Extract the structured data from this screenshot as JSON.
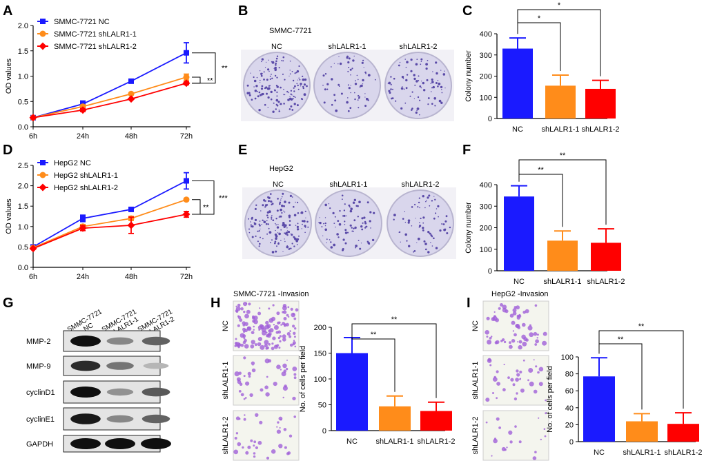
{
  "panels": {
    "A": {
      "letter": "A",
      "chart_index": 0
    },
    "B": {
      "letter": "B",
      "title": "SMMC-7721",
      "dish_labels": [
        "NC",
        "shLALR1-1",
        "shLALR1-2"
      ]
    },
    "C": {
      "letter": "C",
      "chart_index": 1
    },
    "D": {
      "letter": "D",
      "chart_index": 2
    },
    "E": {
      "letter": "E",
      "title": "HepG2",
      "dish_labels": [
        "NC",
        "shLALR1-1",
        "shLALR1-2"
      ]
    },
    "F": {
      "letter": "F",
      "chart_index": 3
    },
    "G": {
      "letter": "G",
      "lane_labels": [
        [
          "SMMC-7721",
          "NC"
        ],
        [
          "SMMC-7721",
          "shLALR1-1"
        ],
        [
          "SMMC-7721",
          "shLALR1-2"
        ]
      ],
      "proteins": [
        "MMP-2",
        "MMP-9",
        "cyclinD1",
        "cyclinE1",
        "GAPDH"
      ],
      "band_intensity": [
        [
          1.0,
          0.35,
          0.55
        ],
        [
          0.85,
          0.45,
          0.1
        ],
        [
          1.0,
          0.3,
          0.6
        ],
        [
          0.95,
          0.35,
          0.55
        ],
        [
          1.0,
          1.0,
          1.0
        ]
      ]
    },
    "H": {
      "letter": "H",
      "title": "SMMC-7721 -Invasion",
      "row_labels": [
        "NC",
        "shLALR1-1",
        "shLALR1-2"
      ],
      "chart_index": 4
    },
    "I": {
      "letter": "I",
      "title": "HepG2 -Invasion",
      "row_labels": [
        "NC",
        "shLALR1-1",
        "shLALR1-2"
      ],
      "chart_index": 5
    }
  },
  "colors": {
    "nc": "#1a1aff",
    "sh1": "#ff8c1a",
    "sh2": "#ff0000",
    "dish": "#d9d6ec",
    "dots": "#5a4aa8",
    "invasion": "#a060d8"
  },
  "chart_data": [
    {
      "type": "line",
      "panel": "A",
      "categories": [
        "6h",
        "24h",
        "48h",
        "72h"
      ],
      "series": [
        {
          "name": "SMMC-7721 NC",
          "values": [
            0.18,
            0.45,
            0.9,
            1.46
          ],
          "errors": [
            0.02,
            0.06,
            0.02,
            0.2
          ],
          "marker": "square",
          "color": "#1a1aff"
        },
        {
          "name": "SMMC-7721 shLALR1-1",
          "values": [
            0.18,
            0.4,
            0.65,
            0.98
          ],
          "errors": [
            0.02,
            0.03,
            0.02,
            0.06
          ],
          "marker": "circle",
          "color": "#ff8c1a"
        },
        {
          "name": "SMMC-7721 shLALR1-2",
          "values": [
            0.18,
            0.33,
            0.55,
            0.86
          ],
          "errors": [
            0.02,
            0.03,
            0.02,
            0.03
          ],
          "marker": "diamond",
          "color": "#ff0000"
        }
      ],
      "ylim": [
        0,
        2.0
      ],
      "yticks": [
        "0.0",
        "0.5",
        "1.0",
        "1.5",
        "2.0"
      ],
      "ylabel": "OD values",
      "xlabel": "",
      "significance": [
        "**",
        "**"
      ]
    },
    {
      "type": "bar",
      "panel": "C",
      "categories": [
        "NC",
        "shLALR1-1",
        "shLALR1-2"
      ],
      "values": [
        330,
        155,
        140
      ],
      "errors": [
        50,
        50,
        40
      ],
      "ylim": [
        0,
        400
      ],
      "yticks": [
        "0",
        "100",
        "200",
        "300",
        "400"
      ],
      "ylabel": "Colony number",
      "significance": [
        "*",
        "*"
      ]
    },
    {
      "type": "line",
      "panel": "D",
      "categories": [
        "6h",
        "24h",
        "48h",
        "72h"
      ],
      "series": [
        {
          "name": "HepG2  NC",
          "values": [
            0.5,
            1.2,
            1.42,
            2.12
          ],
          "errors": [
            0.02,
            0.08,
            0.02,
            0.2
          ],
          "marker": "square",
          "color": "#1a1aff"
        },
        {
          "name": "HepG2 shLALR1-1",
          "values": [
            0.48,
            1.0,
            1.2,
            1.66
          ],
          "errors": [
            0.02,
            0.05,
            0.05,
            0.03
          ],
          "marker": "circle",
          "color": "#ff8c1a"
        },
        {
          "name": "HepG2 shLALR1-2",
          "values": [
            0.46,
            0.96,
            1.03,
            1.3
          ],
          "errors": [
            0.02,
            0.06,
            0.2,
            0.07
          ],
          "marker": "diamond",
          "color": "#ff0000"
        }
      ],
      "ylim": [
        0,
        2.5
      ],
      "yticks": [
        "0.0",
        "0.5",
        "1.0",
        "1.5",
        "2.0",
        "2.5"
      ],
      "ylabel": "OD values",
      "xlabel": "",
      "significance": [
        "**",
        "***"
      ]
    },
    {
      "type": "bar",
      "panel": "F",
      "categories": [
        "NC",
        "shLALR1-1",
        "shLALR1-2"
      ],
      "values": [
        345,
        140,
        130
      ],
      "errors": [
        50,
        45,
        65
      ],
      "ylim": [
        0,
        400
      ],
      "yticks": [
        "0",
        "100",
        "200",
        "300",
        "400"
      ],
      "ylabel": "Colony number",
      "significance": [
        "**",
        "**"
      ]
    },
    {
      "type": "bar",
      "panel": "H",
      "categories": [
        "NC",
        "shLALR1-1",
        "shLALR1-2"
      ],
      "values": [
        150,
        47,
        38
      ],
      "errors": [
        30,
        20,
        17
      ],
      "ylim": [
        0,
        200
      ],
      "yticks": [
        "0",
        "50",
        "100",
        "150",
        "200"
      ],
      "ylabel": "No. of cells per field",
      "significance": [
        "**",
        "**"
      ]
    },
    {
      "type": "bar",
      "panel": "I",
      "categories": [
        "NC",
        "shLALR1-1",
        "shLALR1-2"
      ],
      "values": [
        77,
        24,
        21
      ],
      "errors": [
        22,
        9,
        13
      ],
      "ylim": [
        0,
        100
      ],
      "yticks": [
        "0",
        "20",
        "40",
        "60",
        "80",
        "100"
      ],
      "ylabel": "No. of cells per field",
      "significance": [
        "**",
        "**"
      ]
    }
  ]
}
